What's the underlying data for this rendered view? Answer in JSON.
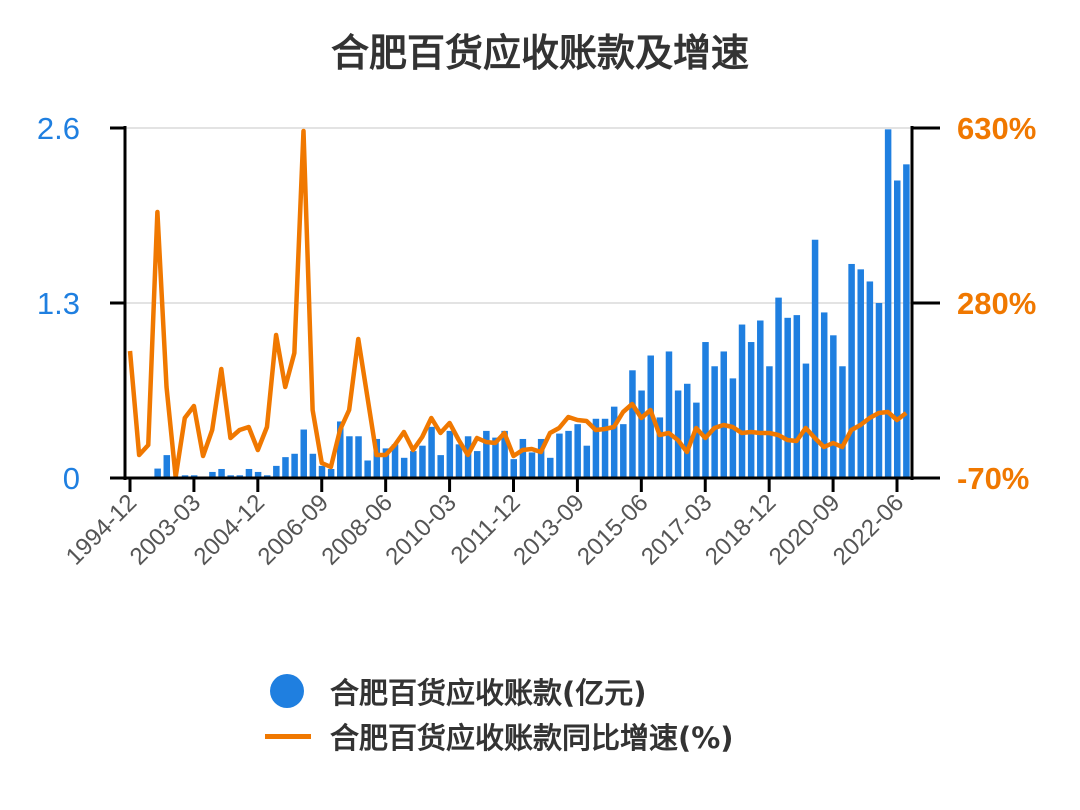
{
  "chart_data": {
    "type": "bar+line",
    "title": "合肥百货应收账款及增速",
    "categories": [
      "1994-12",
      "2001-09",
      "2001-12",
      "2002-03",
      "2002-06",
      "2002-09",
      "2002-12",
      "2003-03",
      "2003-06",
      "2003-09",
      "2003-12",
      "2004-03",
      "2004-06",
      "2004-09",
      "2004-12",
      "2005-03",
      "2005-06",
      "2005-09",
      "2005-12",
      "2006-03",
      "2006-06",
      "2006-09",
      "2006-12",
      "2007-03",
      "2007-06",
      "2007-09",
      "2007-12",
      "2008-03",
      "2008-06",
      "2008-09",
      "2008-12",
      "2009-03",
      "2009-06",
      "2009-09",
      "2009-12",
      "2010-03",
      "2010-06",
      "2010-09",
      "2010-12",
      "2011-03",
      "2011-06",
      "2011-09",
      "2011-12",
      "2012-03",
      "2012-06",
      "2012-09",
      "2012-12",
      "2013-03",
      "2013-06",
      "2013-09",
      "2013-12",
      "2014-03",
      "2014-06",
      "2014-09",
      "2014-12",
      "2015-03",
      "2015-06",
      "2015-09",
      "2015-12",
      "2016-03",
      "2016-06",
      "2016-09",
      "2016-12",
      "2017-03",
      "2017-06",
      "2017-09",
      "2017-12",
      "2018-03",
      "2018-06",
      "2018-09",
      "2018-12",
      "2019-03",
      "2019-06",
      "2019-09",
      "2019-12",
      "2020-03",
      "2020-06",
      "2020-09",
      "2020-12",
      "2021-03",
      "2021-06",
      "2021-09",
      "2021-12",
      "2022-03",
      "2022-06",
      "2022-09"
    ],
    "x_tick_labels": [
      "1994-12",
      "2003-03",
      "2004-12",
      "2006-09",
      "2008-06",
      "2010-03",
      "2011-12",
      "2013-09",
      "2015-06",
      "2017-03",
      "2018-12",
      "2020-09",
      "2022-06"
    ],
    "series": [
      {
        "name": "合肥百货应收账款(亿元)",
        "type": "bar",
        "axis": "left",
        "color": "#1f7fe0",
        "values": [
          0,
          0,
          0,
          0.07,
          0.17,
          0.01,
          0.02,
          0.02,
          0,
          0.045,
          0.067,
          0.02,
          0.02,
          0.067,
          0.045,
          0.02,
          0.09,
          0.155,
          0.18,
          0.36,
          0.18,
          0.09,
          0.067,
          0.42,
          0.31,
          0.31,
          0.13,
          0.29,
          0.22,
          0.25,
          0.15,
          0.2,
          0.24,
          0.38,
          0.17,
          0.35,
          0.25,
          0.31,
          0.2,
          0.35,
          0.3,
          0.35,
          0.14,
          0.29,
          0.19,
          0.29,
          0.15,
          0.33,
          0.35,
          0.4,
          0.24,
          0.44,
          0.44,
          0.53,
          0.4,
          0.8,
          0.65,
          0.91,
          0.45,
          0.94,
          0.65,
          0.7,
          0.56,
          1.01,
          0.83,
          0.94,
          0.74,
          1.14,
          1.01,
          1.17,
          0.83,
          1.34,
          1.19,
          1.21,
          0.85,
          1.77,
          1.23,
          1.06,
          0.83,
          1.59,
          1.55,
          1.46,
          1.3,
          2.59,
          2.21,
          2.33
        ]
      },
      {
        "name": "合肥百货应收账款同比增速(%)",
        "type": "line",
        "axis": "right",
        "color": "#f07800",
        "values": [
          184,
          -24,
          -4,
          462,
          112,
          -68,
          50,
          74,
          -26,
          26,
          148,
          10,
          26,
          32,
          -14,
          32,
          216,
          112,
          180,
          624,
          66,
          -40,
          -48,
          26,
          66,
          208,
          92,
          -24,
          -24,
          -4,
          22,
          -14,
          12,
          50,
          20,
          40,
          6,
          -24,
          10,
          2,
          0,
          20,
          -26,
          -14,
          -12,
          -18,
          20,
          30,
          52,
          46,
          44,
          26,
          28,
          32,
          62,
          78,
          50,
          66,
          16,
          20,
          6,
          -18,
          30,
          10,
          30,
          36,
          32,
          20,
          22,
          20,
          20,
          16,
          6,
          4,
          30,
          10,
          -8,
          0,
          -8,
          26,
          36,
          50,
          60,
          62,
          46,
          60
        ]
      }
    ],
    "y_left": {
      "ylim": [
        0,
        2.6
      ],
      "ticks": [
        "2.6",
        "1.3",
        "0"
      ],
      "color": "#1f7fe0"
    },
    "y_right": {
      "ylim": [
        -70,
        630
      ],
      "ticks": [
        "630%",
        "280%",
        "-70%"
      ],
      "color": "#f07800"
    },
    "grid": true,
    "legend_position": "bottom"
  }
}
